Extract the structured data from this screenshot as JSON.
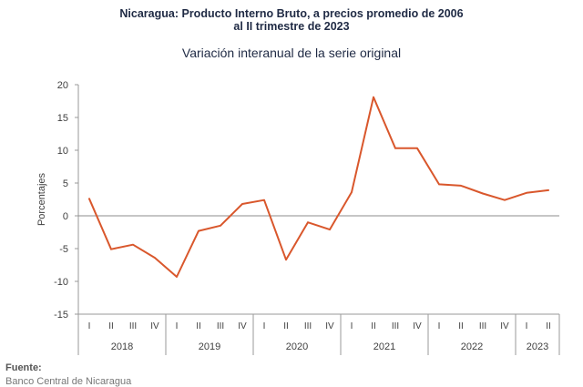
{
  "header": {
    "title_line1": "Nicaragua: Producto Interno Bruto, a precios promedio de 2006",
    "title_line2": "al II trimestre de 2023",
    "subtitle": "Variación interanual de la serie original"
  },
  "source": {
    "label": "Fuente:",
    "text": "Banco Central de Nicaragua"
  },
  "chart_data": {
    "type": "line",
    "ylabel": "Porcentajes",
    "ylim": [
      -15,
      20
    ],
    "yticks": [
      -15,
      -10,
      -5,
      0,
      5,
      10,
      15,
      20
    ],
    "grid": false,
    "line_color": "#d9572c",
    "categories": [
      "I",
      "II",
      "III",
      "IV",
      "I",
      "II",
      "III",
      "IV",
      "I",
      "II",
      "III",
      "IV",
      "I",
      "II",
      "III",
      "IV",
      "I",
      "II",
      "III",
      "IV",
      "I",
      "II"
    ],
    "years": [
      {
        "label": "2018",
        "count": 4
      },
      {
        "label": "2019",
        "count": 4
      },
      {
        "label": "2020",
        "count": 4
      },
      {
        "label": "2021",
        "count": 4
      },
      {
        "label": "2022",
        "count": 4
      },
      {
        "label": "2023",
        "count": 2
      }
    ],
    "series": [
      {
        "values": [
          2.6,
          -5.1,
          -4.4,
          -6.4,
          -9.3,
          -2.3,
          -1.5,
          1.8,
          2.4,
          -6.7,
          -1.0,
          -2.1,
          3.6,
          18.1,
          10.3,
          10.3,
          4.8,
          4.6,
          3.4,
          2.4,
          3.5,
          3.9
        ]
      }
    ]
  }
}
